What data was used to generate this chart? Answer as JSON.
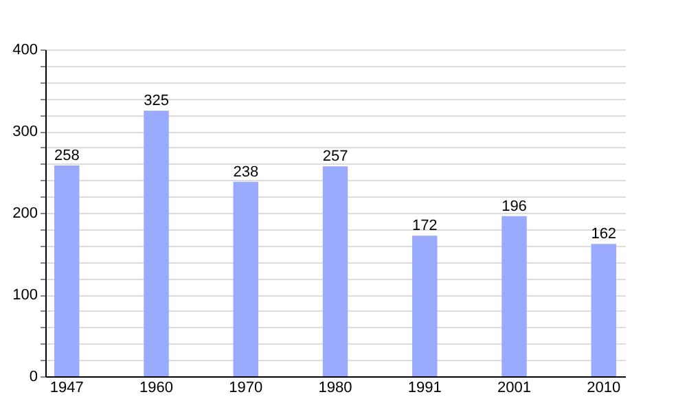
{
  "chart_data": {
    "type": "bar",
    "categories": [
      "1947",
      "1960",
      "1970",
      "1980",
      "1991",
      "2001",
      "2010"
    ],
    "values": [
      258,
      325,
      238,
      257,
      172,
      196,
      162
    ],
    "color": "#99aaff",
    "data_labels": true,
    "grid": "y",
    "ylim": [
      0,
      400
    ],
    "yticks": [
      0,
      {
        "value": 20,
        "label": null
      },
      {
        "value": 40,
        "label": null
      },
      {
        "value": 60,
        "label": null
      },
      {
        "value": 80,
        "label": null
      },
      100,
      {
        "value": 120,
        "label": null
      },
      {
        "value": 140,
        "label": null
      },
      {
        "value": 160,
        "label": null
      },
      {
        "value": 180,
        "label": null
      },
      200,
      {
        "value": 220,
        "label": null
      },
      {
        "value": 240,
        "label": null
      },
      {
        "value": 260,
        "label": null
      },
      {
        "value": 280,
        "label": null
      },
      300,
      {
        "value": 320,
        "label": null
      },
      {
        "value": 340,
        "label": null
      },
      {
        "value": 360,
        "label": null
      },
      {
        "value": 380,
        "label": null
      },
      400
    ]
  }
}
